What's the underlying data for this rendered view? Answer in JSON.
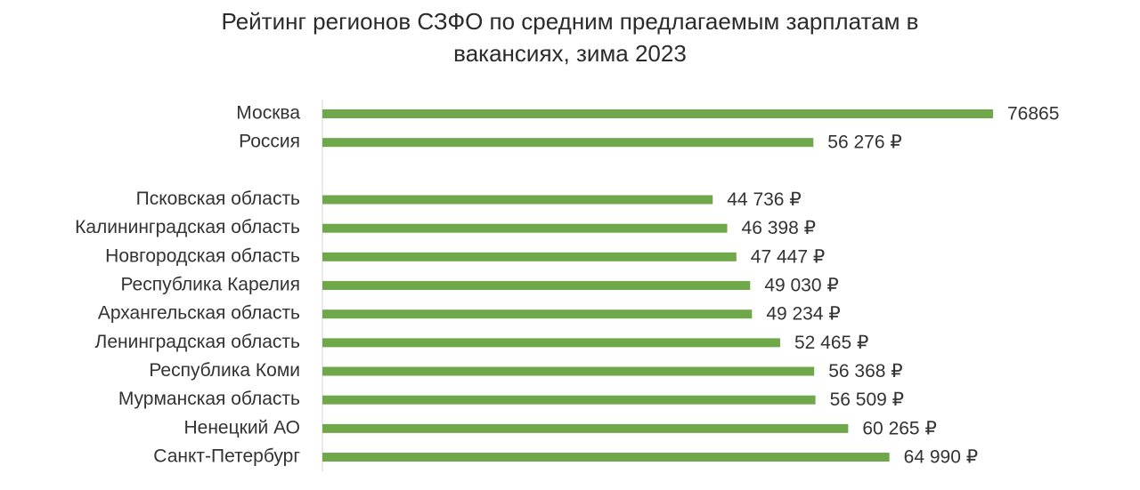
{
  "chart_data": {
    "type": "hbar",
    "title": "Рейтинг регионов СЗФО по средним предлагаемым зарплатам в вакансиях, зима 2023",
    "categories": [
      "Москва",
      "Россия",
      null,
      "Псковская область",
      "Калининградская область",
      "Новгородская область",
      "Республика Карелия",
      "Архангельская область",
      "Ленинградская область",
      "Республика Коми",
      "Мурманская область",
      "Ненецкий АО",
      "Санкт-Петербург"
    ],
    "values": [
      76865,
      56276,
      null,
      44736,
      46398,
      47447,
      49030,
      49234,
      52465,
      56368,
      56509,
      60265,
      64990
    ],
    "value_labels": [
      "76865",
      "56 276 ₽",
      null,
      "44 736 ₽",
      "46 398 ₽",
      "47 447 ₽",
      "49 030 ₽",
      "49 234 ₽",
      "52 465 ₽",
      "56 368 ₽",
      "56 509 ₽",
      "60 265 ₽",
      "64 990 ₽"
    ],
    "color": "#6fa84a"
  }
}
